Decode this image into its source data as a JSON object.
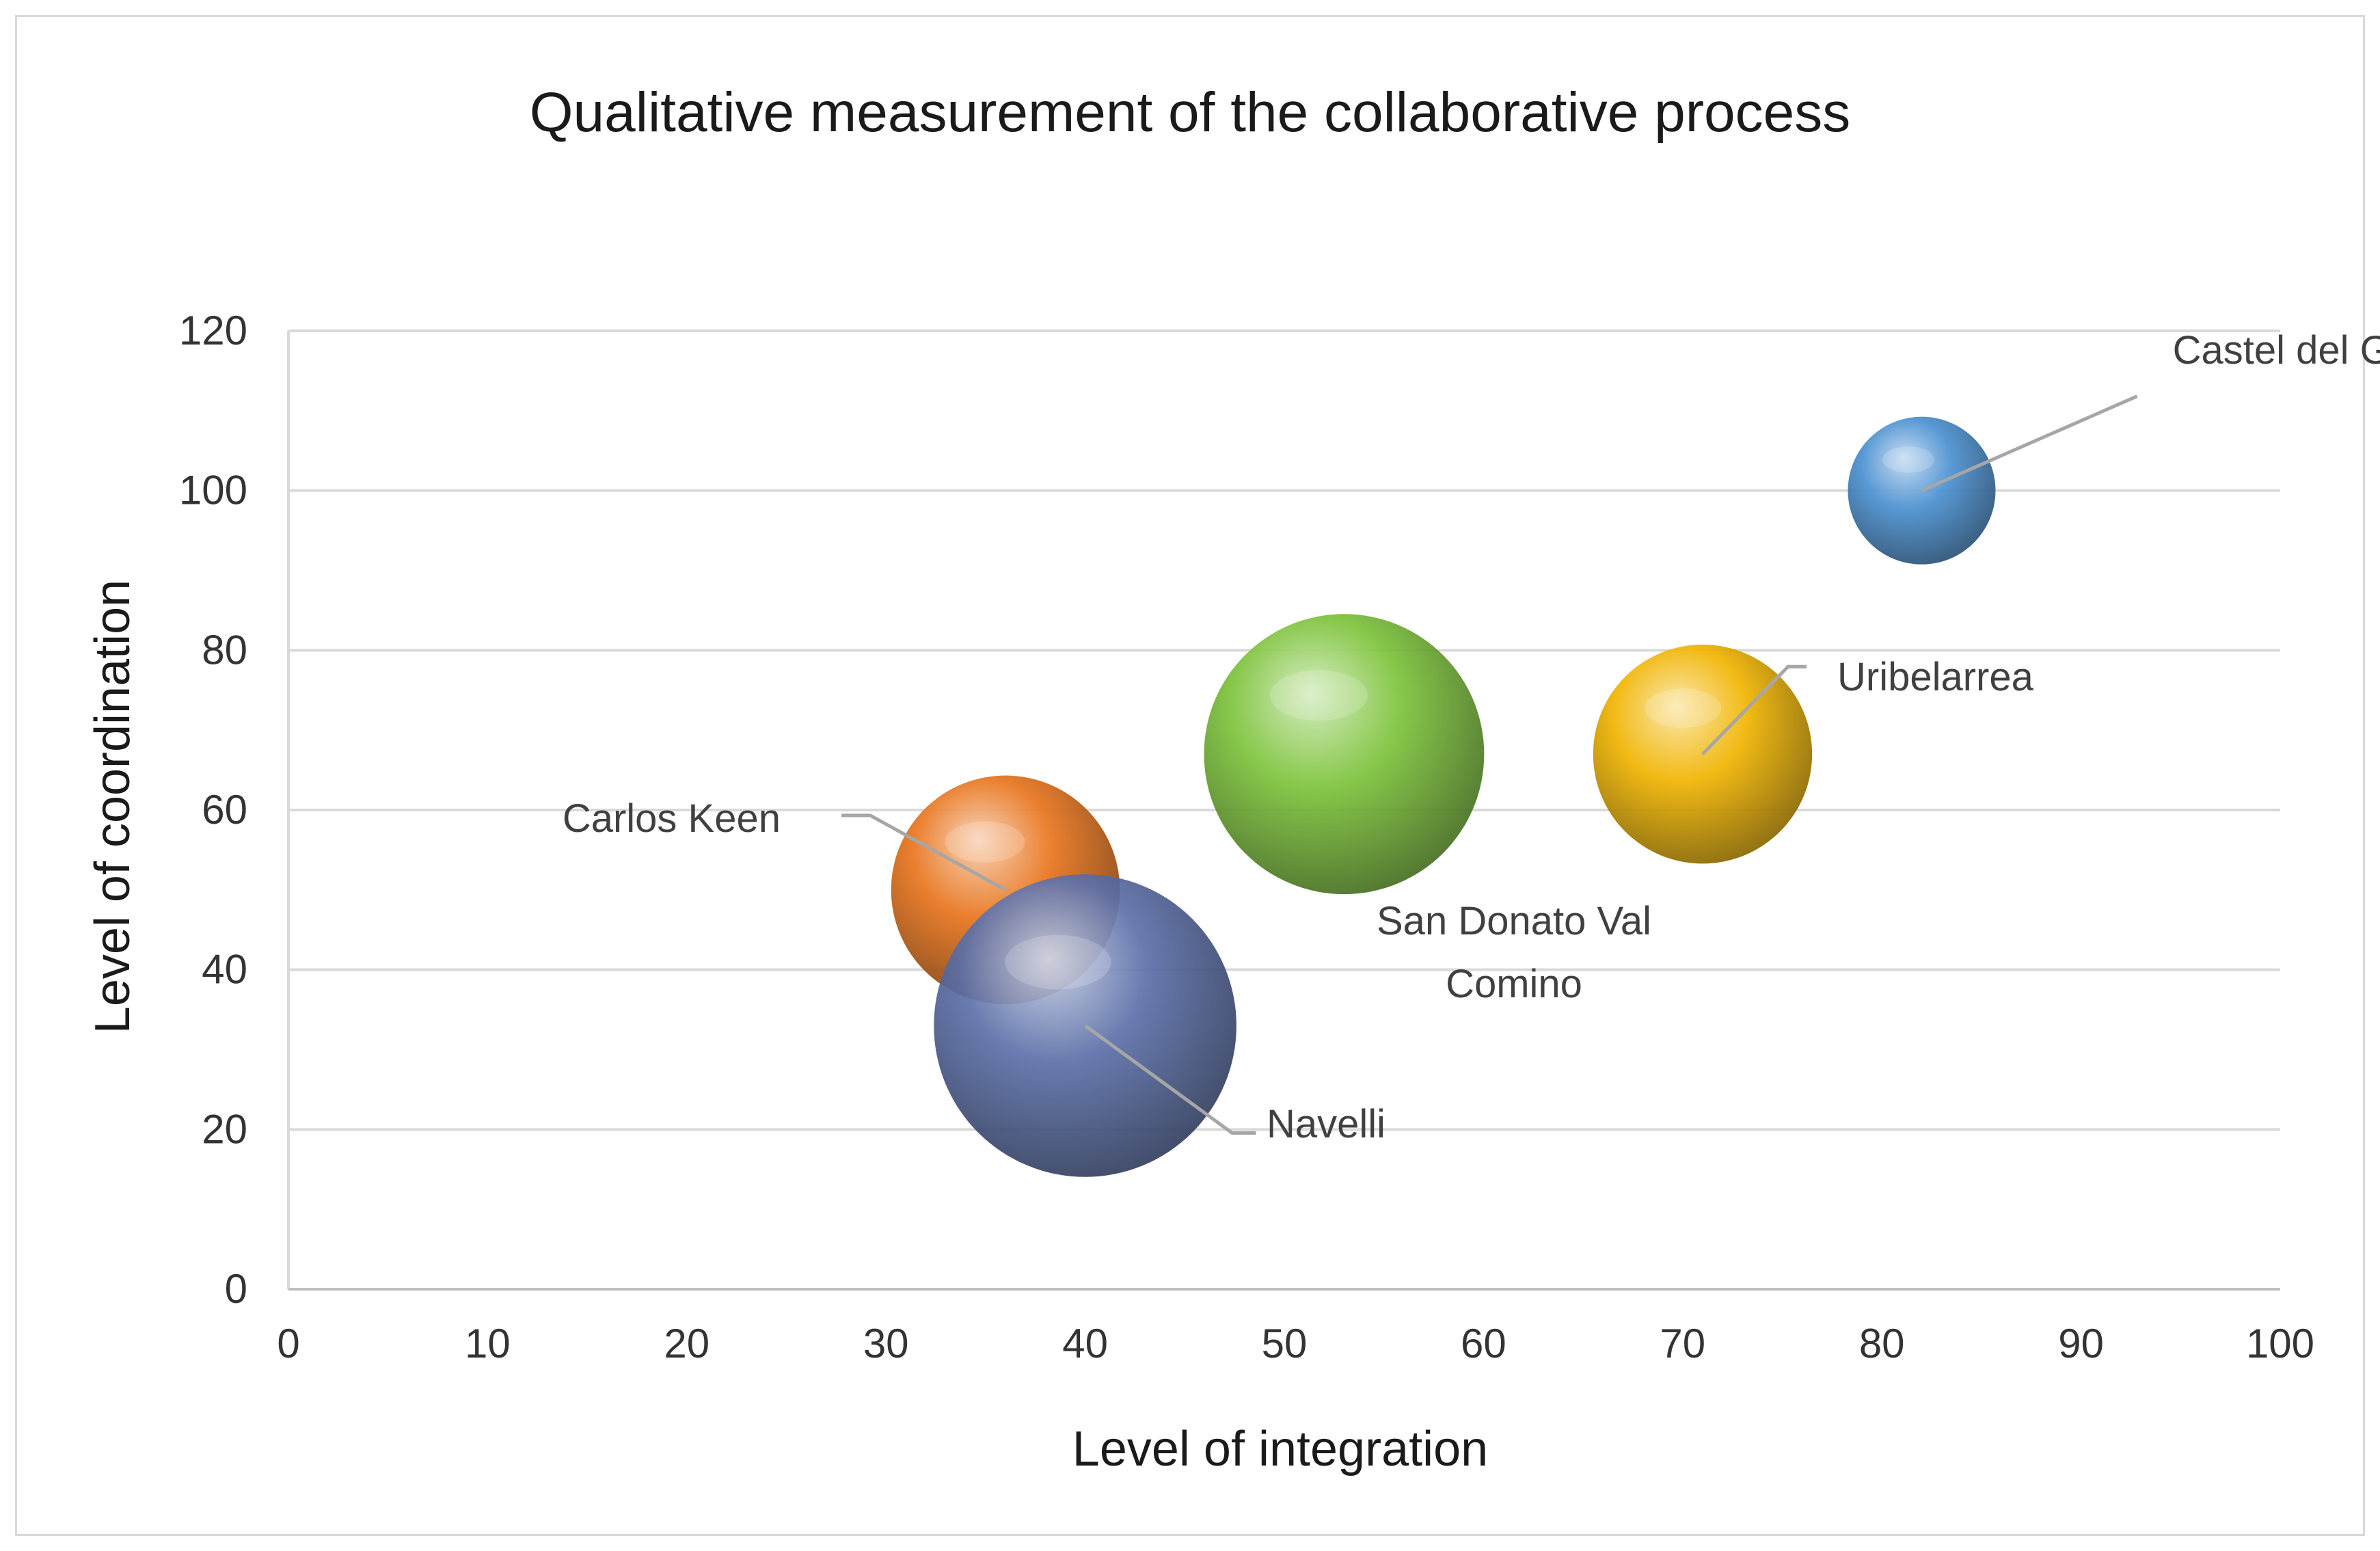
{
  "chart_data": {
    "type": "bubble",
    "title": "Qualitative measurement of the collaborative process",
    "xlabel": "Level of integration",
    "ylabel": "Level of coordination",
    "xlim": [
      0,
      100
    ],
    "ylim": [
      0,
      120
    ],
    "x_ticks": [
      "0",
      "10",
      "20",
      "30",
      "40",
      "50",
      "60",
      "70",
      "80",
      "90",
      "100"
    ],
    "y_ticks": [
      "0",
      "20",
      "40",
      "60",
      "80",
      "100",
      "120"
    ],
    "grid": "horizontal",
    "legend": "none",
    "points": [
      {
        "label": "Castel del Giudice",
        "x": 82,
        "y": 100,
        "size": 1.0,
        "color": "#4a90d0"
      },
      {
        "label": "Uribelarrea",
        "x": 71,
        "y": 67,
        "size": 2.2,
        "color": "#f0b400"
      },
      {
        "label": "San Donato Val Comino",
        "x": 53,
        "y": 67,
        "size": 3.6,
        "color": "#7cc23a"
      },
      {
        "label": "Carlos Keen",
        "x": 36,
        "y": 50,
        "size": 2.4,
        "color": "#e8741c"
      },
      {
        "label": "Navelli",
        "x": 40,
        "y": 33,
        "size": 4.2,
        "color": "#5b6fa8"
      }
    ]
  }
}
